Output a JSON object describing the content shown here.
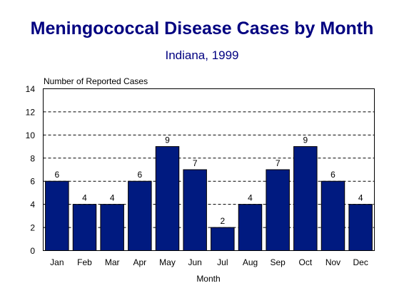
{
  "chart_data": {
    "type": "bar",
    "title": "Meningococcal Disease Cases by Month",
    "subtitle": "Indiana, 1999",
    "ylabel": "Number of Reported Cases",
    "xlabel": "Month",
    "categories": [
      "Jan",
      "Feb",
      "Mar",
      "Apr",
      "May",
      "Jun",
      "Jul",
      "Aug",
      "Sep",
      "Oct",
      "Nov",
      "Dec"
    ],
    "values": [
      6,
      4,
      4,
      6,
      9,
      7,
      2,
      4,
      7,
      9,
      6,
      4
    ],
    "ylim": [
      0,
      14
    ],
    "yticks": [
      0,
      2,
      4,
      6,
      8,
      10,
      12,
      14
    ],
    "grid": true,
    "bar_color": "#001A80",
    "text_color": "#000080"
  }
}
